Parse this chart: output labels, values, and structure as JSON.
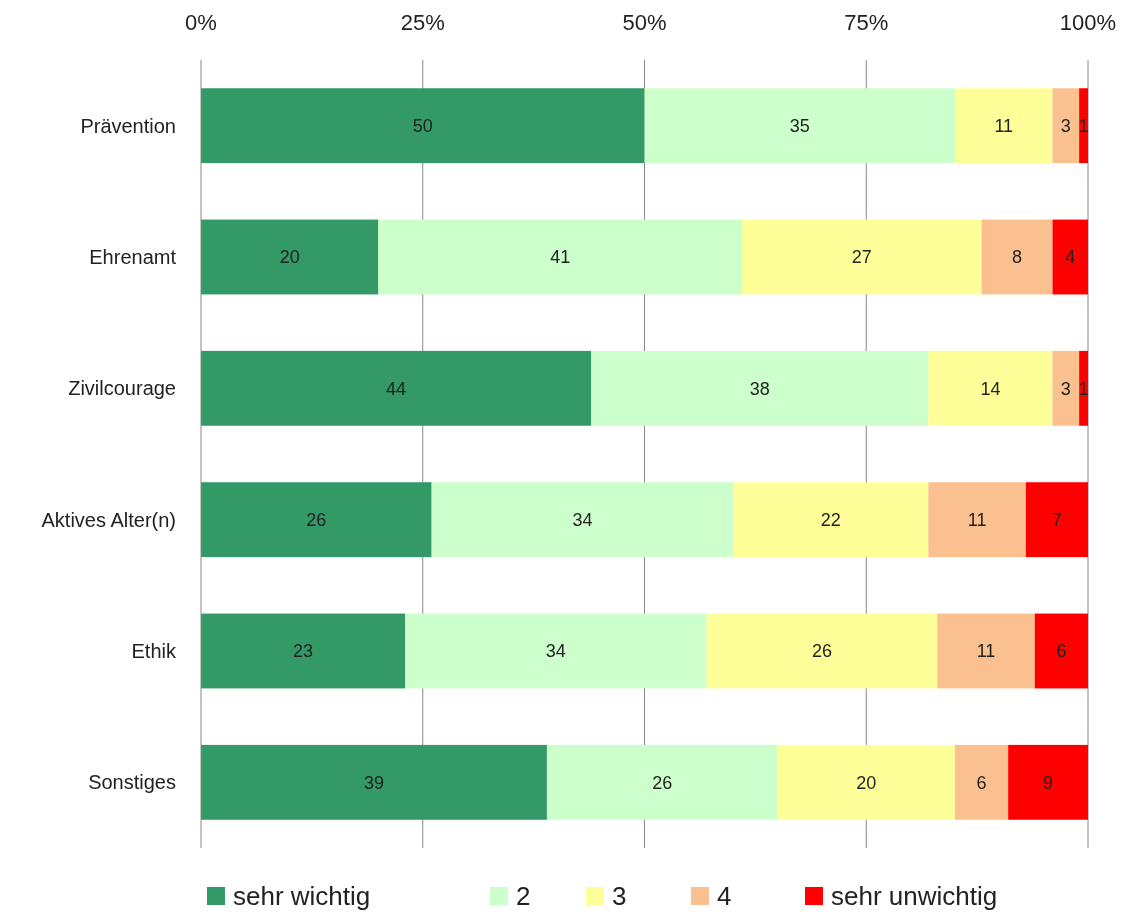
{
  "chart_data": {
    "type": "bar",
    "orientation": "horizontal",
    "stacked": true,
    "categories": [
      "Prävention",
      "Ehrenamt",
      "Zivilcourage",
      "Aktives Alter(n)",
      "Ethik",
      "Sonstiges"
    ],
    "series": [
      {
        "name": "sehr wichtig",
        "color": "#339966",
        "values": [
          50,
          20,
          44,
          26,
          23,
          39
        ]
      },
      {
        "name": "2",
        "color": "#ccffcc",
        "values": [
          35,
          41,
          38,
          34,
          34,
          26
        ]
      },
      {
        "name": "3",
        "color": "#ffff99",
        "values": [
          11,
          27,
          14,
          22,
          26,
          20
        ]
      },
      {
        "name": "4",
        "color": "#fac090",
        "values": [
          3,
          8,
          3,
          11,
          11,
          6
        ]
      },
      {
        "name": "sehr unwichtig",
        "color": "#ff0000",
        "values": [
          1,
          4,
          1,
          7,
          6,
          9
        ]
      }
    ],
    "xlim": [
      0,
      100
    ],
    "xticks": [
      {
        "value": 0,
        "label": "0%"
      },
      {
        "value": 25,
        "label": "25%"
      },
      {
        "value": 50,
        "label": "50%"
      },
      {
        "value": 75,
        "label": "75%"
      },
      {
        "value": 100,
        "label": "100%"
      }
    ],
    "grid": "x",
    "legend": "bottom",
    "data_labels": true
  }
}
